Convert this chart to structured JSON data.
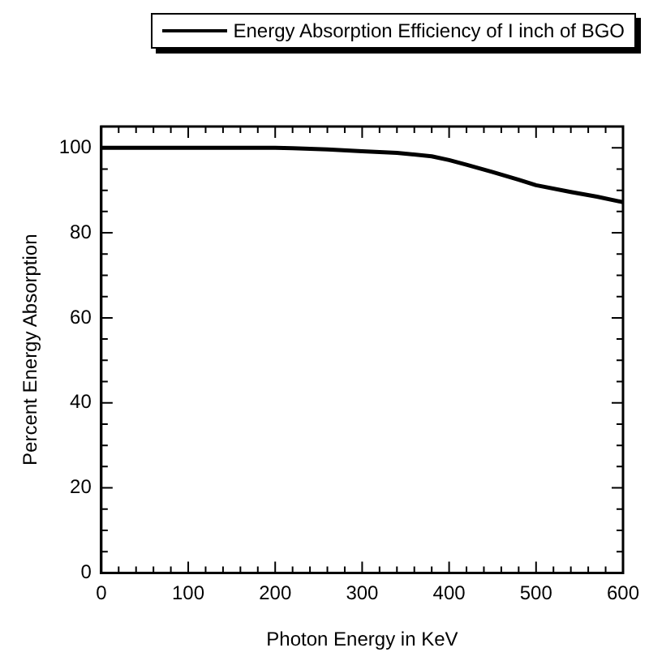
{
  "chart_data": {
    "type": "line",
    "xlabel": "Photon Energy in KeV",
    "ylabel": "Percent Energy Absorption",
    "x": [
      0,
      100,
      200,
      220,
      260,
      300,
      340,
      380,
      400,
      420,
      450,
      480,
      500,
      540,
      570,
      600
    ],
    "series": [
      {
        "name": "Energy Absorption Efficiency of I inch of BGO",
        "color": "#000000",
        "values": [
          100,
          100,
          100,
          99.9,
          99.6,
          99.2,
          98.8,
          98,
          97.1,
          96,
          94.3,
          92.5,
          91.2,
          89.6,
          88.5,
          87.2
        ]
      }
    ],
    "xlim": [
      0,
      600
    ],
    "ylim": [
      0,
      105
    ],
    "xticks": [
      0,
      {
        "value": 20,
        "label": null
      },
      {
        "value": 40,
        "label": null
      },
      {
        "value": 60,
        "label": null
      },
      {
        "value": 80,
        "label": null
      },
      100,
      {
        "value": 120,
        "label": null
      },
      {
        "value": 140,
        "label": null
      },
      {
        "value": 160,
        "label": null
      },
      {
        "value": 180,
        "label": null
      },
      200,
      {
        "value": 220,
        "label": null
      },
      {
        "value": 240,
        "label": null
      },
      {
        "value": 260,
        "label": null
      },
      {
        "value": 280,
        "label": null
      },
      300,
      {
        "value": 320,
        "label": null
      },
      {
        "value": 340,
        "label": null
      },
      {
        "value": 360,
        "label": null
      },
      {
        "value": 380,
        "label": null
      },
      400,
      {
        "value": 420,
        "label": null
      },
      {
        "value": 440,
        "label": null
      },
      {
        "value": 460,
        "label": null
      },
      {
        "value": 480,
        "label": null
      },
      500,
      {
        "value": 520,
        "label": null
      },
      {
        "value": 540,
        "label": null
      },
      {
        "value": 560,
        "label": null
      },
      {
        "value": 580,
        "label": null
      },
      600
    ],
    "yticks": [
      0,
      {
        "value": 5,
        "label": null
      },
      {
        "value": 10,
        "label": null
      },
      {
        "value": 15,
        "label": null
      },
      20,
      {
        "value": 25,
        "label": null
      },
      {
        "value": 30,
        "label": null
      },
      {
        "value": 35,
        "label": null
      },
      40,
      {
        "value": 45,
        "label": null
      },
      {
        "value": 50,
        "label": null
      },
      {
        "value": 55,
        "label": null
      },
      60,
      {
        "value": 65,
        "label": null
      },
      {
        "value": 70,
        "label": null
      },
      {
        "value": 75,
        "label": null
      },
      80,
      {
        "value": 85,
        "label": null
      },
      {
        "value": 90,
        "label": null
      },
      {
        "value": 95,
        "label": null
      },
      100
    ],
    "grid": false,
    "legend": "top",
    "marker": "none",
    "line_style": "solid"
  }
}
